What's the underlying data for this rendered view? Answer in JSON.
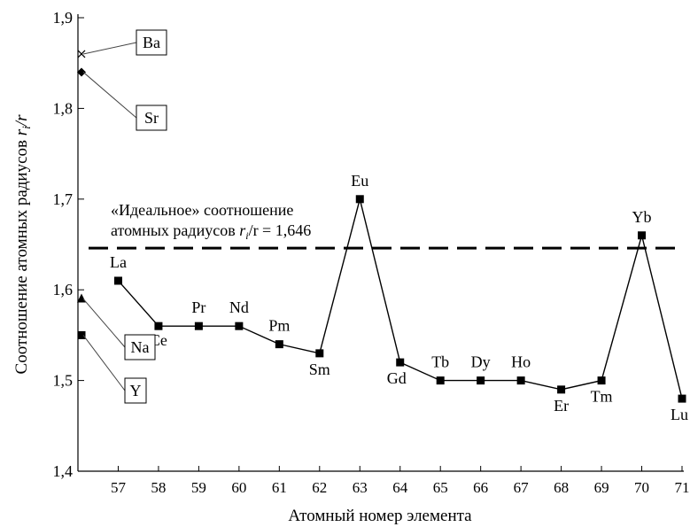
{
  "chart_data": {
    "type": "line",
    "ylabel": "Соотношение атомных радиусов",
    "ylabel_var": "r",
    "ylabel_var_sub": "i",
    "ylabel_var_tail": "/r",
    "xlabel": "Атомный номер элемента",
    "ylim": [
      1.4,
      1.9
    ],
    "yticks": [
      "1,4",
      "1,5",
      "1,6",
      "1,7",
      "1,8",
      "1,9"
    ],
    "ytick_values": [
      1.4,
      1.5,
      1.6,
      1.7,
      1.8,
      1.9
    ],
    "xlim": [
      56,
      71
    ],
    "xticks": [
      "57",
      "58",
      "59",
      "60",
      "61",
      "62",
      "63",
      "64",
      "65",
      "66",
      "67",
      "68",
      "69",
      "70",
      "71"
    ],
    "xtick_values": [
      57,
      58,
      59,
      60,
      61,
      62,
      63,
      64,
      65,
      66,
      67,
      68,
      69,
      70,
      71
    ],
    "series": [
      {
        "marker": "square",
        "color": "#000000",
        "points": [
          {
            "x": 57,
            "y": 1.61,
            "label": "La"
          },
          {
            "x": 58,
            "y": 1.56,
            "label": "Ce"
          },
          {
            "x": 59,
            "y": 1.56,
            "label": "Pr"
          },
          {
            "x": 60,
            "y": 1.56,
            "label": "Nd"
          },
          {
            "x": 61,
            "y": 1.54,
            "label": "Pm"
          },
          {
            "x": 62,
            "y": 1.53,
            "label": "Sm"
          },
          {
            "x": 63,
            "y": 1.7,
            "label": "Eu"
          },
          {
            "x": 64,
            "y": 1.52,
            "label": "Gd"
          },
          {
            "x": 65,
            "y": 1.5,
            "label": "Tb"
          },
          {
            "x": 66,
            "y": 1.5,
            "label": "Dy"
          },
          {
            "x": 67,
            "y": 1.5,
            "label": "Ho"
          },
          {
            "x": 68,
            "y": 1.49,
            "label": "Er"
          },
          {
            "x": 69,
            "y": 1.5,
            "label": "Tm"
          },
          {
            "x": 70,
            "y": 1.66,
            "label": "Yb"
          },
          {
            "x": 71,
            "y": 1.48,
            "label": "Lu"
          }
        ]
      }
    ],
    "boxed_points": [
      {
        "label": "Ba",
        "y": 1.86,
        "marker": "cross"
      },
      {
        "label": "Sr",
        "y": 1.84,
        "marker": "diamond"
      },
      {
        "label": "Na",
        "y": 1.59,
        "marker": "triangle"
      },
      {
        "label": "Y",
        "y": 1.55,
        "marker": "square"
      }
    ],
    "reference_line": {
      "y": 1.646,
      "style": "dashed",
      "label_line1": "«Идеальное» соотношение",
      "label_line2_prefix": "атомных радиусов",
      "label_var": "r",
      "label_var_sub": "i",
      "label_tail": "/r = 1,646"
    },
    "grid": false,
    "legend": "none"
  }
}
